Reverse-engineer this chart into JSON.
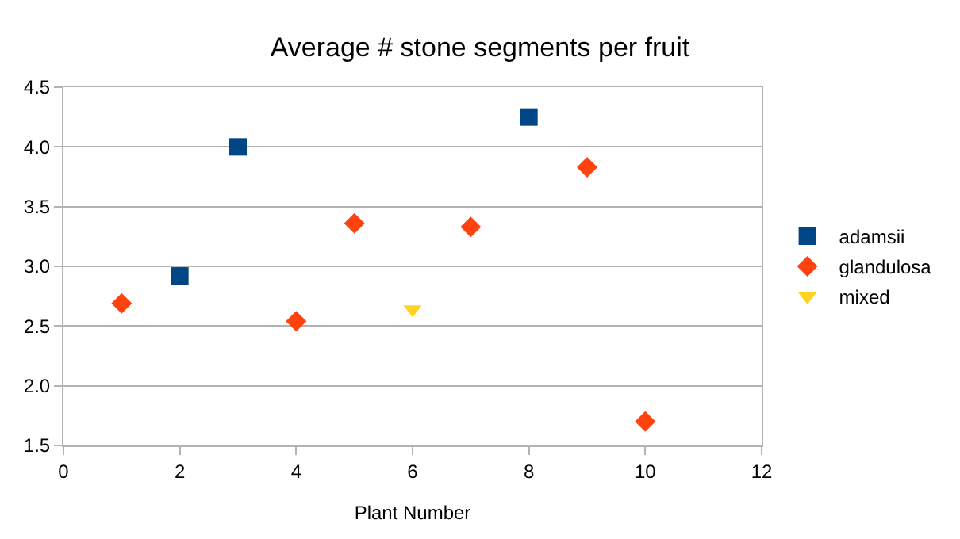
{
  "chart_data": {
    "type": "scatter",
    "title": "Average # stone segments per fruit",
    "xlabel": "Plant Number",
    "x": [
      1,
      2,
      3,
      4,
      5,
      6,
      7,
      8,
      9,
      10
    ],
    "series": [
      {
        "name": "adamsii",
        "color": "#004586",
        "marker": "square",
        "values": [
          null,
          2.92,
          4.0,
          null,
          null,
          null,
          null,
          4.25,
          null,
          null
        ]
      },
      {
        "name": "glandulosa",
        "color": "#ff420e",
        "marker": "diamond",
        "values": [
          2.69,
          null,
          null,
          2.54,
          3.36,
          null,
          3.33,
          null,
          3.83,
          1.7
        ]
      },
      {
        "name": "mixed",
        "color": "#ffd320",
        "marker": "triangle",
        "values": [
          null,
          null,
          null,
          null,
          null,
          2.64,
          null,
          null,
          null,
          null
        ]
      }
    ],
    "xlim": [
      0,
      12
    ],
    "xticks": [
      0,
      2,
      4,
      6,
      8,
      10,
      12
    ],
    "ylim": [
      1.5,
      4.5
    ],
    "yticks": [
      {
        "value": 1.5,
        "label": "1.5"
      },
      {
        "value": 2,
        "label": "2.0"
      },
      {
        "value": 2.5,
        "label": "2.5"
      },
      {
        "value": 3,
        "label": "3.0"
      },
      {
        "value": 3.5,
        "label": "3.5"
      },
      {
        "value": 4,
        "label": "4.0"
      },
      {
        "value": 4.5,
        "label": "4.5"
      }
    ],
    "grid": "y",
    "legend": "right"
  }
}
